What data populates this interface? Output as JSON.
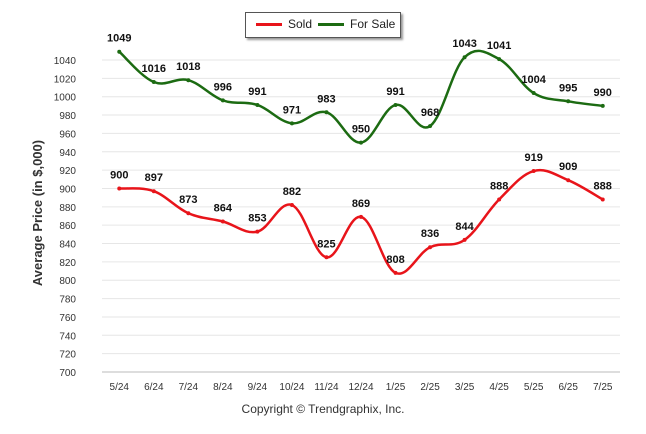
{
  "chart_data": {
    "type": "line",
    "categories": [
      "5/24",
      "6/24",
      "7/24",
      "8/24",
      "9/24",
      "10/24",
      "11/24",
      "12/24",
      "1/25",
      "2/25",
      "3/25",
      "4/25",
      "5/25",
      "6/25",
      "7/25"
    ],
    "series": [
      {
        "name": "Sold",
        "color": "#e8141a",
        "values": [
          900,
          897,
          873,
          864,
          853,
          882,
          825,
          869,
          808,
          836,
          844,
          888,
          919,
          909,
          888
        ]
      },
      {
        "name": "For Sale",
        "color": "#1c6b12",
        "values": [
          1049,
          1016,
          1018,
          996,
          991,
          971,
          983,
          950,
          991,
          968,
          1043,
          1041,
          1004,
          995,
          990
        ]
      }
    ],
    "ylabel": "Average Price (in $,000)",
    "ylim": [
      700,
      1060
    ],
    "yticks": [
      700,
      720,
      740,
      760,
      780,
      800,
      820,
      840,
      860,
      880,
      900,
      920,
      940,
      960,
      980,
      1000,
      1020,
      1040
    ],
    "grid": true,
    "legend": "top-center"
  },
  "footer": {
    "copyright": "Copyright © Trendgraphix, Inc."
  }
}
